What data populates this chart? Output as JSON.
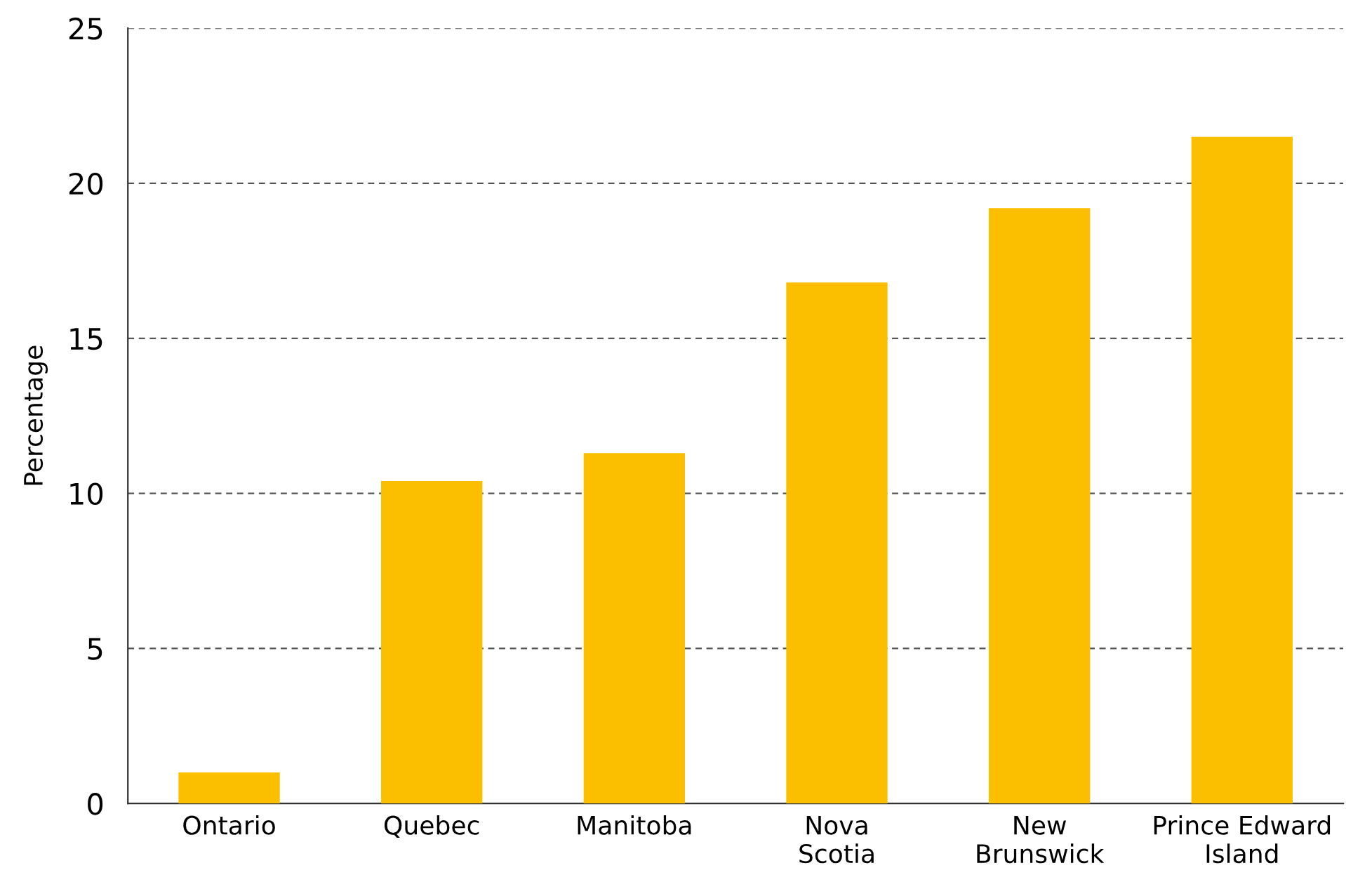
{
  "chart_data": {
    "type": "bar",
    "ylabel": "Percentage",
    "categories": [
      "Ontario",
      "Quebec",
      "Manitoba",
      "Nova\nScotia",
      "New\nBrunswick",
      "Prince Edward\nIsland"
    ],
    "values": [
      1.0,
      10.4,
      11.3,
      16.8,
      19.2,
      21.5
    ],
    "color": "#fbbf00",
    "ylim": [
      0,
      25
    ],
    "yticks": [
      0,
      5,
      10,
      15,
      20,
      25
    ],
    "grid": "y",
    "legend": false
  }
}
